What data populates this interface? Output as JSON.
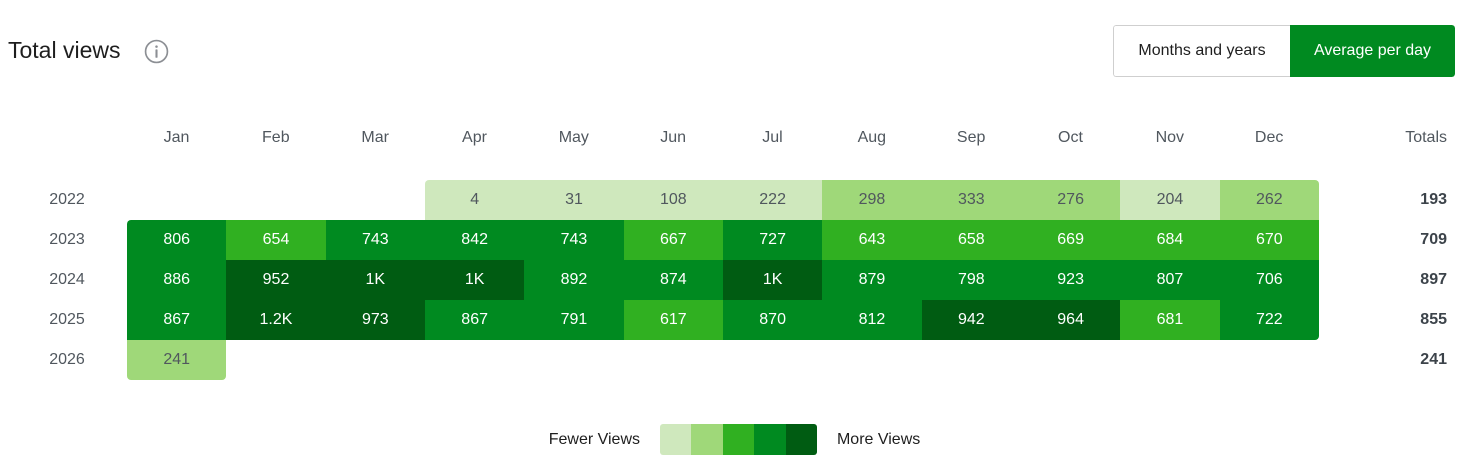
{
  "header": {
    "title": "Total views",
    "info_icon": "info-circle-icon"
  },
  "toggle": {
    "options": [
      "Months and years",
      "Average per day"
    ],
    "selected": "Average per day"
  },
  "heatmap": {
    "months": [
      "Jan",
      "Feb",
      "Mar",
      "Apr",
      "May",
      "Jun",
      "Jul",
      "Aug",
      "Sep",
      "Oct",
      "Nov",
      "Dec"
    ],
    "totals_label": "Totals",
    "rows": [
      {
        "year": "2022",
        "total": "193",
        "cells": [
          null,
          null,
          null,
          {
            "label": "4",
            "level": 1
          },
          {
            "label": "31",
            "level": 1
          },
          {
            "label": "108",
            "level": 1
          },
          {
            "label": "222",
            "level": 1
          },
          {
            "label": "298",
            "level": 2
          },
          {
            "label": "333",
            "level": 2
          },
          {
            "label": "276",
            "level": 2
          },
          {
            "label": "204",
            "level": 1
          },
          {
            "label": "262",
            "level": 2
          }
        ]
      },
      {
        "year": "2023",
        "total": "709",
        "cells": [
          {
            "label": "806",
            "level": 4
          },
          {
            "label": "654",
            "level": 3
          },
          {
            "label": "743",
            "level": 4
          },
          {
            "label": "842",
            "level": 4
          },
          {
            "label": "743",
            "level": 4
          },
          {
            "label": "667",
            "level": 3
          },
          {
            "label": "727",
            "level": 4
          },
          {
            "label": "643",
            "level": 3
          },
          {
            "label": "658",
            "level": 3
          },
          {
            "label": "669",
            "level": 3
          },
          {
            "label": "684",
            "level": 3
          },
          {
            "label": "670",
            "level": 3
          }
        ]
      },
      {
        "year": "2024",
        "total": "897",
        "cells": [
          {
            "label": "886",
            "level": 4
          },
          {
            "label": "952",
            "level": 5
          },
          {
            "label": "1K",
            "level": 5
          },
          {
            "label": "1K",
            "level": 5
          },
          {
            "label": "892",
            "level": 4
          },
          {
            "label": "874",
            "level": 4
          },
          {
            "label": "1K",
            "level": 5
          },
          {
            "label": "879",
            "level": 4
          },
          {
            "label": "798",
            "level": 4
          },
          {
            "label": "923",
            "level": 4
          },
          {
            "label": "807",
            "level": 4
          },
          {
            "label": "706",
            "level": 4
          }
        ]
      },
      {
        "year": "2025",
        "total": "855",
        "cells": [
          {
            "label": "867",
            "level": 4
          },
          {
            "label": "1.2K",
            "level": 5
          },
          {
            "label": "973",
            "level": 5
          },
          {
            "label": "867",
            "level": 4
          },
          {
            "label": "791",
            "level": 4
          },
          {
            "label": "617",
            "level": 3
          },
          {
            "label": "870",
            "level": 4
          },
          {
            "label": "812",
            "level": 4
          },
          {
            "label": "942",
            "level": 5
          },
          {
            "label": "964",
            "level": 5
          },
          {
            "label": "681",
            "level": 3
          },
          {
            "label": "722",
            "level": 4
          }
        ]
      },
      {
        "year": "2026",
        "total": "241",
        "cells": [
          {
            "label": "241",
            "level": 2
          },
          null,
          null,
          null,
          null,
          null,
          null,
          null,
          null,
          null,
          null,
          null
        ]
      }
    ]
  },
  "legend": {
    "fewer_label": "Fewer Views",
    "more_label": "More Views"
  },
  "colors": {
    "levels": [
      "#cfe8bd",
      "#9fd879",
      "#30b021",
      "#008a20",
      "#005c12"
    ],
    "accent": "#008a20",
    "light_text": "#50575e",
    "dark_text": "#ffffff"
  }
}
